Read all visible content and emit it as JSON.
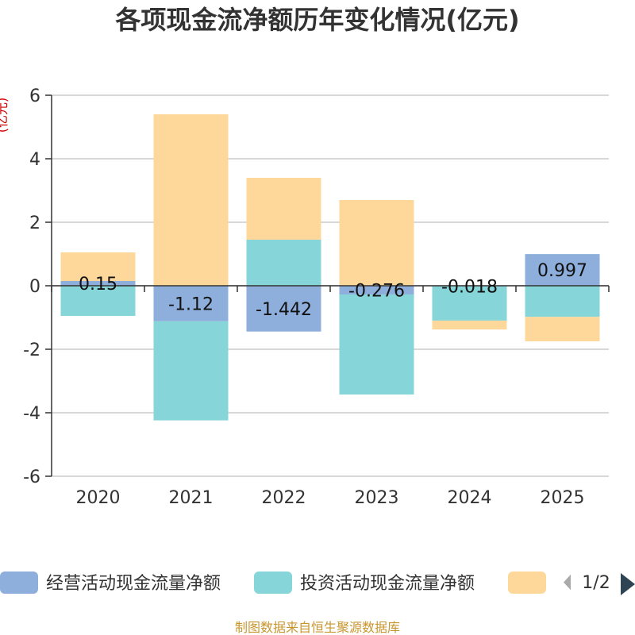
{
  "chart_data": {
    "type": "bar",
    "stacked": true,
    "title": "各项现金流净额历年变化情况(亿元)",
    "ylabel": "(亿元)",
    "ylim": [
      -6,
      6
    ],
    "yticks": [
      6,
      4,
      2,
      0,
      -2,
      -4,
      -6
    ],
    "grid": true,
    "legend_position": "bottom",
    "categories": [
      "2020",
      "2021",
      "2022",
      "2023",
      "2024",
      "2025"
    ],
    "series": [
      {
        "name": "经营活动现金流量净额",
        "color": "#8eaedb",
        "values": [
          0.15,
          -1.12,
          -1.442,
          -0.276,
          -0.018,
          0.997
        ],
        "show_labels": true
      },
      {
        "name": "投资活动现金流量净额",
        "color": "#86d5d8",
        "values": [
          -0.95,
          -3.12,
          1.45,
          -3.15,
          -1.08,
          -0.98
        ],
        "show_labels": false
      },
      {
        "name": "",
        "color": "#fdd89a",
        "values": [
          0.9,
          5.4,
          1.95,
          2.7,
          -0.28,
          -0.77
        ],
        "show_labels": false
      }
    ],
    "data_labels": [
      "0.15",
      "-1.12",
      "-1.442",
      "-0.276",
      "-0.018",
      "0.997"
    ]
  },
  "legend": {
    "page_indicator": "1/2"
  },
  "footer": {
    "source": "制图数据来自恒生聚源数据库"
  }
}
